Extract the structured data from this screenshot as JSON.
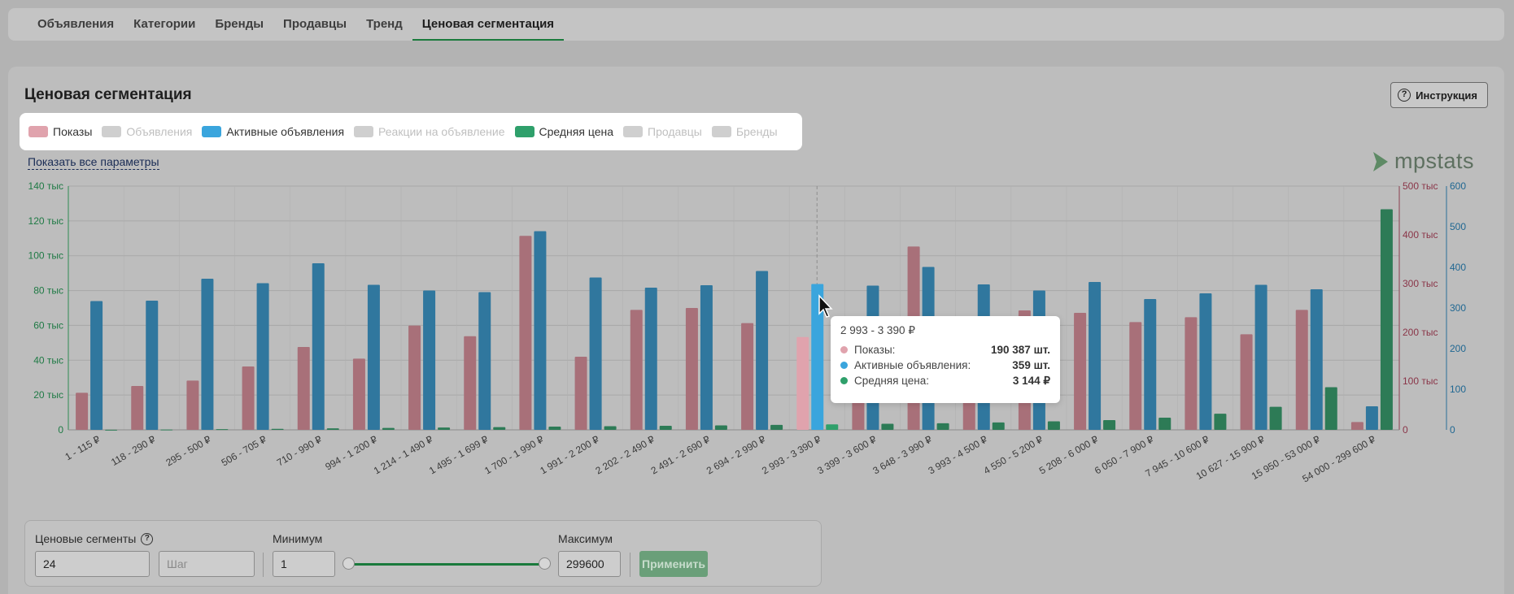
{
  "tabs": [
    {
      "label": "Объявления"
    },
    {
      "label": "Категории"
    },
    {
      "label": "Бренды"
    },
    {
      "label": "Продавцы"
    },
    {
      "label": "Тренд"
    },
    {
      "label": "Ценовая сегментация",
      "active": true
    }
  ],
  "title": "Ценовая сегментация",
  "help_button": "Инструкция",
  "legend": [
    {
      "label": "Показы",
      "color": "#e0a3ad",
      "on": true
    },
    {
      "label": "Объявления",
      "color": "#cfcfcf",
      "on": false
    },
    {
      "label": "Активные объявления",
      "color": "#3aa5dd",
      "on": true
    },
    {
      "label": "Реакции на объявление",
      "color": "#cfcfcf",
      "on": false
    },
    {
      "label": "Средняя цена",
      "color": "#2fa06b",
      "on": true
    },
    {
      "label": "Продавцы",
      "color": "#cfcfcf",
      "on": false
    },
    {
      "label": "Бренды",
      "color": "#cfcfcf",
      "on": false
    }
  ],
  "show_all_link": "Показать все параметры",
  "logo": "mpstats",
  "chart_data": {
    "type": "bar",
    "categories": [
      "1 - 115 ₽",
      "118 - 290 ₽",
      "295 - 500 ₽",
      "506 - 705 ₽",
      "710 - 990 ₽",
      "994 - 1 200 ₽",
      "1 214 - 1 490 ₽",
      "1 495 - 1 699 ₽",
      "1 700 - 1 990 ₽",
      "1 991 - 2 200 ₽",
      "2 202 - 2 490 ₽",
      "2 491 - 2 690 ₽",
      "2 694 - 2 990 ₽",
      "2 993 - 3 390 ₽",
      "3 399 - 3 600 ₽",
      "3 648 - 3 990 ₽",
      "3 993 - 4 500 ₽",
      "4 550 - 5 200 ₽",
      "5 208 - 6 000 ₽",
      "6 050 - 7 900 ₽",
      "7 945 - 10 600 ₽",
      "10 627 - 15 900 ₽",
      "15 950 - 53 000 ₽",
      "54 000 - 299 600 ₽"
    ],
    "series": [
      {
        "name": "Показы",
        "axis": "right1",
        "color": "#e0a3ad",
        "values": [
          76000,
          90000,
          101000,
          130000,
          170000,
          146000,
          214000,
          192000,
          398000,
          150000,
          246000,
          250000,
          219000,
          190387,
          140000,
          376000,
          110000,
          245000,
          240000,
          221000,
          231000,
          196000,
          246000,
          16000
        ]
      },
      {
        "name": "Активные объявления",
        "axis": "right2",
        "color": "#3aa5dd",
        "values": [
          317,
          318,
          372,
          361,
          410,
          357,
          343,
          339,
          489,
          375,
          350,
          356,
          391,
          359,
          355,
          401,
          358,
          343,
          364,
          322,
          336,
          357,
          346,
          58
        ]
      },
      {
        "name": "Средняя цена",
        "axis": "left",
        "color": "#2fa06b",
        "values": [
          58,
          204,
          398,
          603,
          850,
          1097,
          1352,
          1597,
          1845,
          2095,
          2346,
          2590,
          2842,
          3144,
          3500,
          3820,
          4246,
          4875,
          5604,
          6975,
          9272,
          13263,
          24475,
          126700
        ]
      }
    ],
    "y_left": {
      "ticks": [
        "0",
        "20 тыс",
        "40 тыс",
        "60 тыс",
        "80 тыс",
        "100 тыс",
        "120 тыс",
        "140 тыс"
      ],
      "max": 140000
    },
    "y_right1": {
      "ticks": [
        "0",
        "100 тыс",
        "200 тыс",
        "300 тыс",
        "400 тыс",
        "500 тыс"
      ],
      "max": 500000
    },
    "y_right2": {
      "ticks": [
        "0",
        "100",
        "200",
        "300",
        "400",
        "500",
        "600"
      ],
      "max": 600
    },
    "highlight_index": 13
  },
  "tooltip": {
    "title": "2 993 - 3 390 ₽",
    "rows": [
      {
        "label": "Показы:",
        "value": "190 387 шт.",
        "color": "#e0a3ad"
      },
      {
        "label": "Активные объявления:",
        "value": "359 шт.",
        "color": "#3aa5dd"
      },
      {
        "label": "Средняя цена:",
        "value": "3 144 ₽",
        "color": "#2fa06b"
      }
    ]
  },
  "controls": {
    "segments_label": "Ценовые сегменты",
    "segments_value": "24",
    "step_placeholder": "Шаг",
    "min_label": "Минимум",
    "min_value": "1",
    "max_label": "Максимум",
    "max_value": "299600",
    "apply_label": "Применить"
  }
}
